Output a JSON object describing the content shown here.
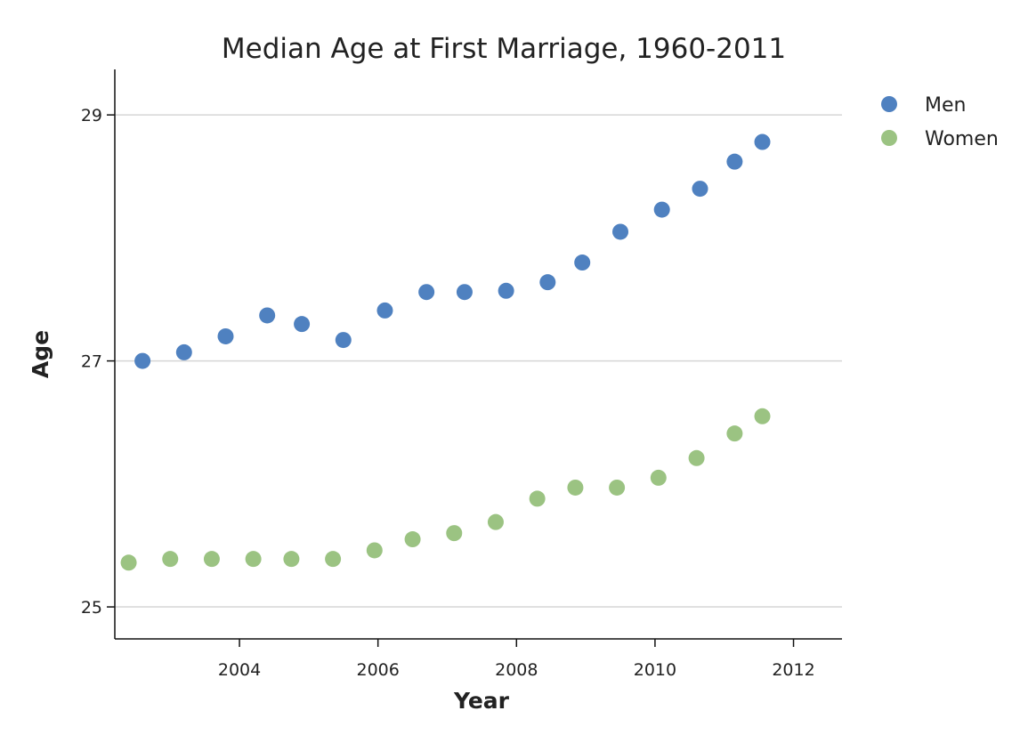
{
  "chart_data": {
    "type": "scatter",
    "title": "Median Age at First Marriage, 1960-2011",
    "xlabel": "Year",
    "ylabel": "Age",
    "xlim": [
      2002.2,
      2012.7
    ],
    "ylim": [
      24.74,
      29.37
    ],
    "x_ticks": [
      2004,
      2006,
      2008,
      2010,
      2012
    ],
    "x_tick_labels": [
      "2004",
      "2006",
      "2008",
      "2010",
      "2012"
    ],
    "y_ticks": [
      25,
      27,
      29
    ],
    "y_tick_labels": [
      "25",
      "27",
      "29"
    ],
    "grid": "horizontal",
    "legend_position": "top-right",
    "series": [
      {
        "name": "Men",
        "color": "#4f81c0",
        "points": [
          [
            2002.6,
            27.0
          ],
          [
            2003.2,
            27.07
          ],
          [
            2003.8,
            27.2
          ],
          [
            2004.4,
            27.37
          ],
          [
            2004.9,
            27.3
          ],
          [
            2005.5,
            27.17
          ],
          [
            2006.1,
            27.41
          ],
          [
            2006.7,
            27.56
          ],
          [
            2007.25,
            27.56
          ],
          [
            2007.85,
            27.57
          ],
          [
            2008.45,
            27.64
          ],
          [
            2008.95,
            27.8
          ],
          [
            2009.5,
            28.05
          ],
          [
            2010.1,
            28.23
          ],
          [
            2010.65,
            28.4
          ],
          [
            2011.15,
            28.62
          ],
          [
            2011.55,
            28.78
          ]
        ]
      },
      {
        "name": "Women",
        "color": "#9bc382",
        "points": [
          [
            2002.4,
            25.36
          ],
          [
            2003.0,
            25.39
          ],
          [
            2003.6,
            25.39
          ],
          [
            2004.2,
            25.39
          ],
          [
            2004.75,
            25.39
          ],
          [
            2005.35,
            25.39
          ],
          [
            2005.95,
            25.46
          ],
          [
            2006.5,
            25.55
          ],
          [
            2007.1,
            25.6
          ],
          [
            2007.7,
            25.69
          ],
          [
            2008.3,
            25.88
          ],
          [
            2008.85,
            25.97
          ],
          [
            2009.45,
            25.97
          ],
          [
            2010.05,
            26.05
          ],
          [
            2010.6,
            26.21
          ],
          [
            2011.15,
            26.41
          ],
          [
            2011.55,
            26.55
          ]
        ]
      }
    ]
  }
}
